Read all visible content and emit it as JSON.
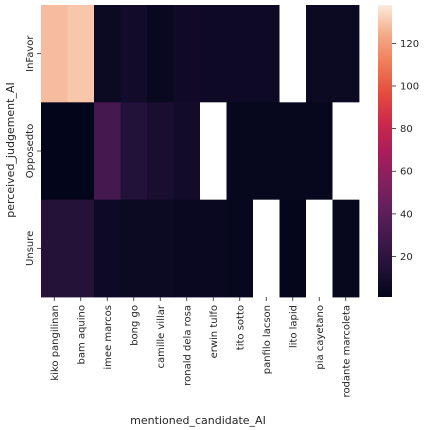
{
  "chart_data": {
    "type": "heatmap",
    "title": "",
    "xlabel": "mentioned_candidate_AI",
    "ylabel": "perceived_judgement_AI",
    "x_categories": [
      "kiko pangilinan",
      "bam aquino",
      "imee marcos",
      "bong go",
      "camille villar",
      "ronald dela rosa",
      "erwin tulfo",
      "tito sotto",
      "panfilo lacson",
      "lito lapid",
      "pia cayetano",
      "rodante marcoleta"
    ],
    "y_categories": [
      "InFavor",
      "Opposedto",
      "Unsure"
    ],
    "values": [
      [
        128,
        130,
        5,
        8,
        4,
        7,
        6,
        6,
        6,
        null,
        5,
        5
      ],
      [
        1,
        1,
        30,
        15,
        11,
        8,
        null,
        3,
        3,
        3,
        3,
        null
      ],
      [
        16,
        16,
        6,
        5,
        5,
        4,
        4,
        3,
        null,
        2,
        null,
        3
      ]
    ],
    "colorbar": {
      "min": 1,
      "max": 138,
      "ticks": [
        20,
        40,
        60,
        80,
        100,
        120
      ],
      "colormap": "rocket"
    },
    "missing_color": "#ffffff"
  }
}
